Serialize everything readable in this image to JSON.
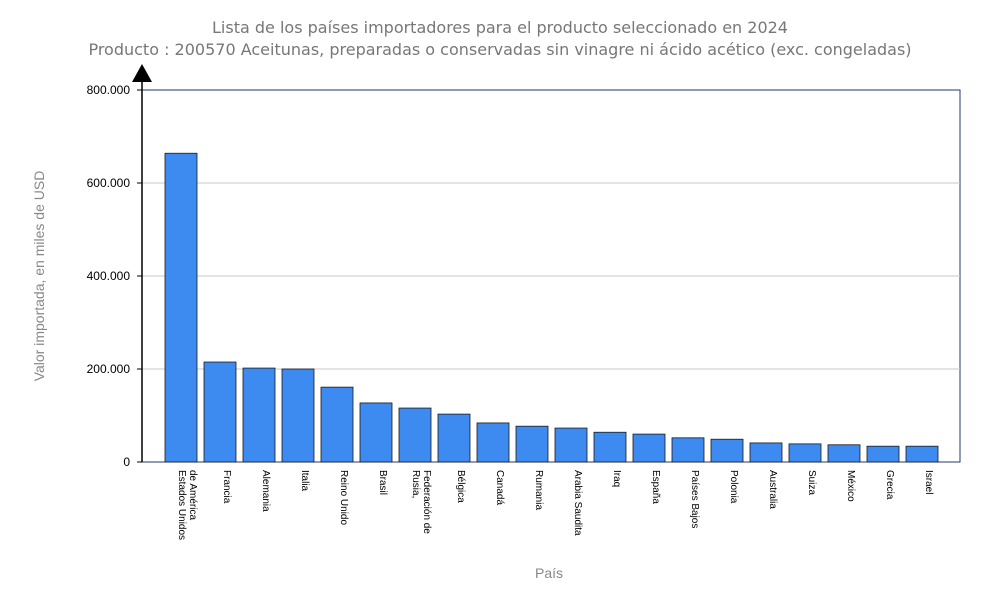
{
  "chart_data": {
    "type": "bar",
    "title": "Lista de los países importadores para el producto seleccionado en 2024",
    "subtitle": "Producto : 200570 Aceitunas, preparadas o conservadas sin vinagre ni ácido acético (exc. congeladas)",
    "xlabel": "País",
    "ylabel": "Valor importada, en miles de USD",
    "ylim": [
      0,
      800000
    ],
    "yticks": [
      0,
      200000,
      400000,
      600000,
      800000
    ],
    "ytick_labels": [
      "0",
      "200.000",
      "400.000",
      "600.000",
      "800.000"
    ],
    "grid": true,
    "bar_color": "#3d8af0",
    "categories": [
      [
        "Estados Unidos",
        "de América"
      ],
      [
        "Francia"
      ],
      [
        "Alemania"
      ],
      [
        "Italia"
      ],
      [
        "Reino Unido"
      ],
      [
        "Brasil"
      ],
      [
        "Rusia,",
        "Federación de"
      ],
      [
        "Bélgica"
      ],
      [
        "Canadá"
      ],
      [
        "Rumania"
      ],
      [
        "Arabia Saudita"
      ],
      [
        "Iraq"
      ],
      [
        "España"
      ],
      [
        "Países Bajos"
      ],
      [
        "Polonia"
      ],
      [
        "Australia"
      ],
      [
        "Suiza"
      ],
      [
        "México"
      ],
      [
        "Grecia"
      ],
      [
        "Israel"
      ]
    ],
    "values": [
      664000,
      215000,
      202000,
      200000,
      161000,
      127000,
      116000,
      103000,
      84000,
      77000,
      73000,
      64000,
      60000,
      52000,
      49000,
      41000,
      39000,
      37000,
      34000,
      34000
    ]
  }
}
